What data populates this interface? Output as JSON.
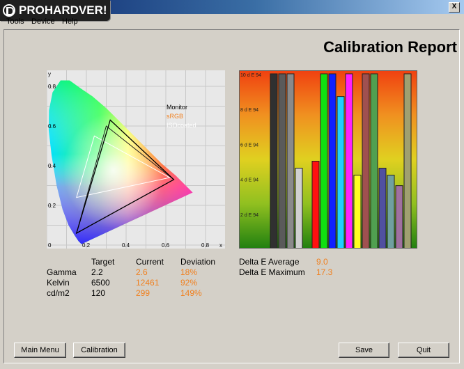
{
  "logo": {
    "text": "PROHARDVER!"
  },
  "menu": [
    "Tools",
    "Device",
    "Help"
  ],
  "window": {
    "close_label": "X"
  },
  "report_title": "Calibration Report",
  "cie_diagram": {
    "axis_y_label": "y",
    "axis_x_label": "x",
    "y_ticks": [
      "0.8",
      "0.6",
      "0.4",
      "0.2",
      "0"
    ],
    "x_ticks": [
      "0.2",
      "0.4",
      "0.6",
      "0.8"
    ],
    "legend": [
      {
        "name": "Monitor",
        "color": "#000000"
      },
      {
        "name": "sRGB",
        "color": "#f08020"
      },
      {
        "name": "ISOcoated",
        "color": "#ffffff"
      }
    ],
    "gamuts": {
      "monitor": [
        [
          0.32,
          0.63
        ],
        [
          0.64,
          0.33
        ],
        [
          0.15,
          0.06
        ]
      ],
      "srgb": [
        [
          0.3,
          0.6
        ],
        [
          0.64,
          0.33
        ],
        [
          0.15,
          0.06
        ]
      ],
      "isocoated": [
        [
          0.24,
          0.55
        ],
        [
          0.62,
          0.34
        ],
        [
          0.15,
          0.24
        ]
      ]
    }
  },
  "chart_data": {
    "type": "bar",
    "title": "",
    "y_ticks": [
      "10 d E 94",
      "8 d E 94",
      "6 d E 94",
      "4 d E 94",
      "2 d E 94"
    ],
    "ylim": [
      0,
      10
    ],
    "bars": [
      {
        "value": 10,
        "color": "#303030"
      },
      {
        "value": 10,
        "color": "#5a5a5a"
      },
      {
        "value": 10,
        "color": "#8a8a8a"
      },
      {
        "value": 4.6,
        "color": "#d0d0d0"
      },
      {
        "value": 0,
        "color": "#000000"
      },
      {
        "value": 5.0,
        "color": "#ff1010"
      },
      {
        "value": 10,
        "color": "#10e010"
      },
      {
        "value": 10,
        "color": "#1020ff"
      },
      {
        "value": 8.7,
        "color": "#20d0ff"
      },
      {
        "value": 10,
        "color": "#ff20ff"
      },
      {
        "value": 4.2,
        "color": "#ffff20"
      },
      {
        "value": 10,
        "color": "#a05050"
      },
      {
        "value": 10,
        "color": "#50a050"
      },
      {
        "value": 4.6,
        "color": "#5050a0"
      },
      {
        "value": 4.2,
        "color": "#70a0a0"
      },
      {
        "value": 3.6,
        "color": "#a070a0"
      },
      {
        "value": 10,
        "color": "#a0a070"
      }
    ]
  },
  "stats": {
    "headers": [
      "Target",
      "Current",
      "Deviation"
    ],
    "rows": [
      {
        "label": "Gamma",
        "target": "2.2",
        "current": "2.6",
        "deviation": "18%"
      },
      {
        "label": "Kelvin",
        "target": "6500",
        "current": "12461",
        "deviation": "92%"
      },
      {
        "label": "cd/m2",
        "target": "120",
        "current": "299",
        "deviation": "149%"
      }
    ]
  },
  "delta_e": {
    "average_label": "Delta E Average",
    "average_value": "9.0",
    "maximum_label": "Delta E Maximum",
    "maximum_value": "17.3"
  },
  "buttons": {
    "main_menu": "Main Menu",
    "calibration": "Calibration",
    "save": "Save",
    "quit": "Quit"
  }
}
